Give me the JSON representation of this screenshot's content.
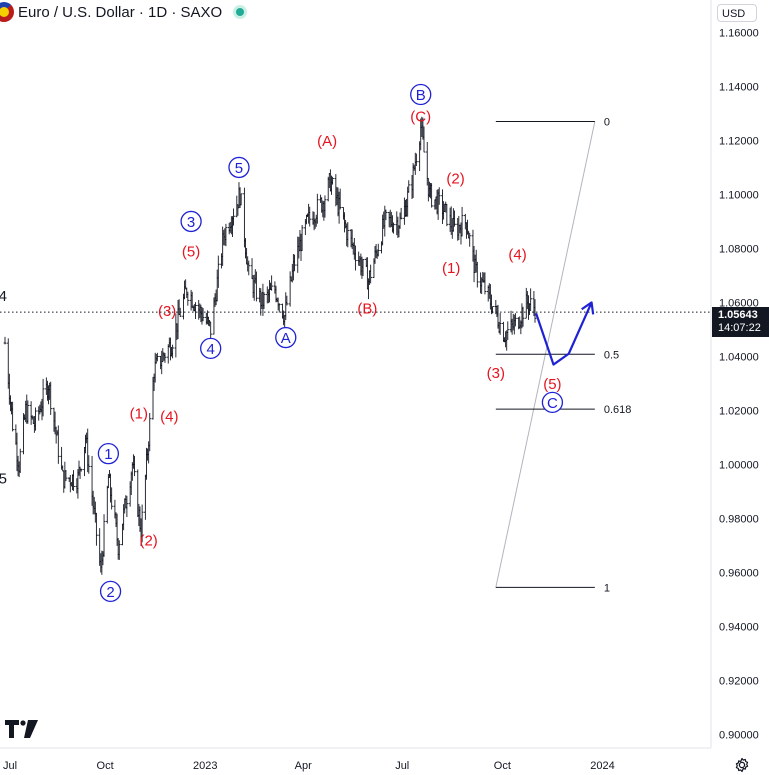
{
  "header": {
    "symbol": "Euro / U.S. Dollar",
    "sep1": "/",
    "interval": "1D",
    "source": "SAXO",
    "title_text": "Euro / U.S. Dollar · 1D · SAXO"
  },
  "currency_button": "USD",
  "price_tag": {
    "price": "1.05643",
    "countdown": "14:07:22"
  },
  "chart_data": {
    "type": "candlestick",
    "y_axis": {
      "ticks": [
        "1.16000",
        "1.14000",
        "1.12000",
        "1.10000",
        "1.08000",
        "1.06000",
        "1.04000",
        "1.02000",
        "1.00000",
        "0.98000",
        "0.96000",
        "0.94000",
        "0.92000",
        "0.90000"
      ],
      "ylim": [
        0.895,
        1.172
      ]
    },
    "x_axis": {
      "ticks": [
        "Jul",
        "Oct",
        "2023",
        "Apr",
        "Jul",
        "Oct",
        "2024"
      ],
      "range": [
        "2022-07-01",
        "2024-03-15"
      ]
    },
    "current_price": 1.05643,
    "price_series": [
      [
        "2022-07-01",
        1.045
      ],
      [
        "2022-07-08",
        1.015
      ],
      [
        "2022-07-14",
        1.0
      ],
      [
        "2022-07-20",
        1.02
      ],
      [
        "2022-07-28",
        1.015
      ],
      [
        "2022-08-10",
        1.03
      ],
      [
        "2022-08-23",
        0.995
      ],
      [
        "2022-09-06",
        0.995
      ],
      [
        "2022-09-13",
        1.01
      ],
      [
        "2022-09-20",
        0.985
      ],
      [
        "2022-09-27",
        0.96
      ],
      [
        "2022-10-04",
        0.995
      ],
      [
        "2022-10-13",
        0.97
      ],
      [
        "2022-10-26",
        1.0
      ],
      [
        "2022-11-03",
        0.975
      ],
      [
        "2022-11-15",
        1.035
      ],
      [
        "2022-12-01",
        1.045
      ],
      [
        "2022-12-15",
        1.065
      ],
      [
        "2023-01-06",
        1.05
      ],
      [
        "2023-01-18",
        1.085
      ],
      [
        "2023-02-02",
        1.1
      ],
      [
        "2023-02-10",
        1.07
      ],
      [
        "2023-02-22",
        1.06
      ],
      [
        "2023-03-06",
        1.065
      ],
      [
        "2023-03-15",
        1.055
      ],
      [
        "2023-03-24",
        1.075
      ],
      [
        "2023-04-05",
        1.09
      ],
      [
        "2023-04-20",
        1.098
      ],
      [
        "2023-04-26",
        1.105
      ],
      [
        "2023-05-12",
        1.085
      ],
      [
        "2023-05-31",
        1.068
      ],
      [
        "2023-06-15",
        1.09
      ],
      [
        "2023-06-30",
        1.09
      ],
      [
        "2023-07-10",
        1.105
      ],
      [
        "2023-07-18",
        1.125
      ],
      [
        "2023-07-26",
        1.1
      ],
      [
        "2023-08-07",
        1.095
      ],
      [
        "2023-08-18",
        1.087
      ],
      [
        "2023-08-29",
        1.09
      ],
      [
        "2023-09-06",
        1.072
      ],
      [
        "2023-09-15",
        1.065
      ],
      [
        "2023-09-26",
        1.055
      ],
      [
        "2023-10-03",
        1.048
      ],
      [
        "2023-10-13",
        1.052
      ],
      [
        "2023-10-24",
        1.06
      ],
      [
        "2023-10-31",
        1.058
      ]
    ],
    "horizontal_line": {
      "y": 1.05643,
      "style": "dotted"
    },
    "wave_labels": [
      {
        "text": "4",
        "date": "2022-06-29",
        "y": 1.0625,
        "color": "#131722",
        "circled": false
      },
      {
        "text": "5",
        "date": "2022-06-29",
        "y": 0.995,
        "color": "#131722",
        "circled": false
      },
      {
        "text": "1",
        "date": "2022-10-04",
        "y": 1.004,
        "color": "#1e22d4",
        "circled": true
      },
      {
        "text": "2",
        "date": "2022-10-06",
        "y": 0.953,
        "color": "#1e22d4",
        "circled": true
      },
      {
        "text": "(1)",
        "date": "2022-11-01",
        "y": 1.019,
        "color": "#e5141f",
        "circled": false
      },
      {
        "text": "(2)",
        "date": "2022-11-10",
        "y": 0.972,
        "color": "#e5141f",
        "circled": false
      },
      {
        "text": "(3)",
        "date": "2022-11-27",
        "y": 1.057,
        "color": "#e5141f",
        "circled": false
      },
      {
        "text": "(4)",
        "date": "2022-11-29",
        "y": 1.018,
        "color": "#e5141f",
        "circled": false
      },
      {
        "text": "3",
        "date": "2022-12-19",
        "y": 1.09,
        "color": "#1e22d4",
        "circled": true
      },
      {
        "text": "(5)",
        "date": "2022-12-19",
        "y": 1.079,
        "color": "#e5141f",
        "circled": false
      },
      {
        "text": "4",
        "date": "2023-01-06",
        "y": 1.043,
        "color": "#1e22d4",
        "circled": true
      },
      {
        "text": "5",
        "date": "2023-02-01",
        "y": 1.11,
        "color": "#1e22d4",
        "circled": true
      },
      {
        "text": "A",
        "date": "2023-03-16",
        "y": 1.047,
        "color": "#1e22d4",
        "circled": true
      },
      {
        "text": "(A)",
        "date": "2023-04-23",
        "y": 1.12,
        "color": "#e5141f",
        "circled": false
      },
      {
        "text": "(B)",
        "date": "2023-05-30",
        "y": 1.058,
        "color": "#e5141f",
        "circled": false
      },
      {
        "text": "B",
        "date": "2023-07-18",
        "y": 1.137,
        "color": "#1e22d4",
        "circled": true
      },
      {
        "text": "(C)",
        "date": "2023-07-18",
        "y": 1.129,
        "color": "#e5141f",
        "circled": false
      },
      {
        "text": "(2)",
        "date": "2023-08-19",
        "y": 1.106,
        "color": "#e5141f",
        "circled": false
      },
      {
        "text": "(1)",
        "date": "2023-08-15",
        "y": 1.073,
        "color": "#e5141f",
        "circled": false
      },
      {
        "text": "(4)",
        "date": "2023-10-15",
        "y": 1.078,
        "color": "#e5141f",
        "circled": false
      },
      {
        "text": "(3)",
        "date": "2023-09-25",
        "y": 1.034,
        "color": "#e5141f",
        "circled": false
      },
      {
        "text": "(5)",
        "date": "2023-11-16",
        "y": 1.03,
        "color": "#e5141f",
        "circled": false
      },
      {
        "text": "C",
        "date": "2023-11-16",
        "y": 1.023,
        "color": "#1e22d4",
        "circled": true
      }
    ],
    "fibonacci": {
      "anchor_start": {
        "date": "2023-09-25",
        "y": 0.9545
      },
      "anchor_end": {
        "date": "2023-12-25",
        "y": 1.127
      },
      "levels": [
        {
          "label": "0",
          "y": 1.127
        },
        {
          "label": "0.5",
          "y": 1.0408
        },
        {
          "label": "0.618",
          "y": 1.0205
        },
        {
          "label": "1",
          "y": 0.9545
        }
      ]
    },
    "projection_path": [
      [
        "2023-11-01",
        1.056
      ],
      [
        "2023-11-17",
        1.037
      ],
      [
        "2023-12-01",
        1.041
      ],
      [
        "2023-12-22",
        1.06
      ]
    ],
    "projection_color": "#1e22d4"
  }
}
